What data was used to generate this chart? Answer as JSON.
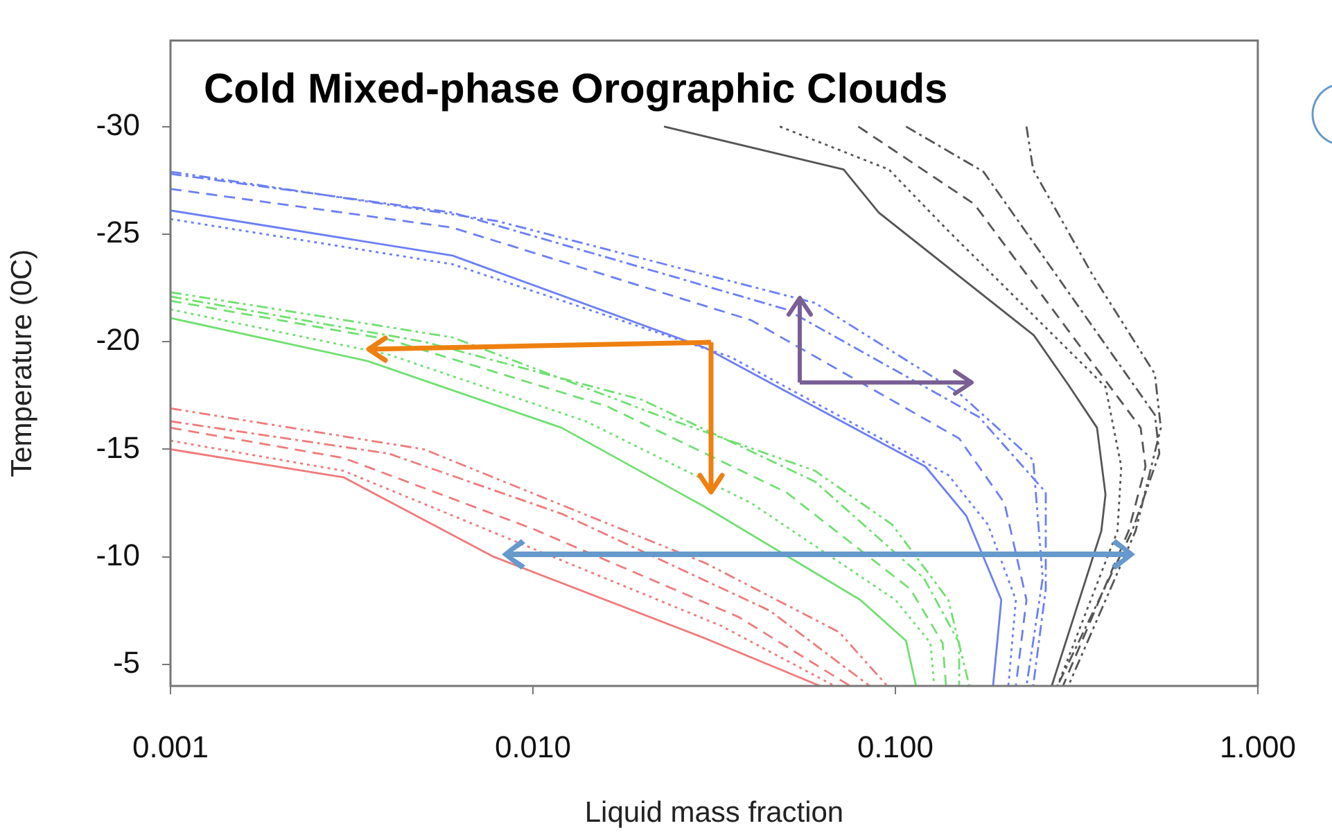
{
  "chart_data": {
    "type": "line",
    "title": "Cold Mixed-phase Orographic Clouds",
    "xlabel": "Liquid mass fraction",
    "ylabel": "Temperature (0C)",
    "log": "x",
    "xlim": [
      0.001,
      1
    ],
    "xticks": [
      0.001,
      {
        "value": 0.01,
        "label": "0.010"
      },
      {
        "value": 0.1,
        "label": "0.100"
      },
      {
        "value": 1,
        "label": "1.000"
      }
    ],
    "ylim": [
      -4,
      -34
    ],
    "yticks": [
      -30,
      -25,
      -20,
      -15,
      -10,
      -5
    ],
    "series": [
      {
        "color": "#6b7ff5",
        "line_style": "solid",
        "x": [
          0.001,
          0.006,
          0.03,
          0.121,
          0.157,
          0.196,
          0.186
        ],
        "values": [
          -26.1,
          -24,
          -19.7,
          -14.2,
          -11.9,
          -8,
          -4
        ]
      },
      {
        "color": "#6b7ff5",
        "line_style": "dotted",
        "x": [
          0.001,
          0.006,
          0.035,
          0.14,
          0.18,
          0.215,
          0.205
        ],
        "values": [
          -25.7,
          -23.6,
          -19.3,
          -13.8,
          -11.5,
          -8,
          -4
        ]
      },
      {
        "color": "#6b7ff5",
        "line_style": "dashed",
        "x": [
          0.001,
          0.006,
          0.04,
          0.15,
          0.2,
          0.23,
          0.215
        ],
        "values": [
          -27.1,
          -25.3,
          -21,
          -15.5,
          -12.5,
          -8,
          -4
        ]
      },
      {
        "color": "#6b7ff5",
        "line_style": "dashdot",
        "x": [
          0.001,
          0.006,
          0.05,
          0.17,
          0.26,
          0.26,
          0.24
        ],
        "values": [
          -27.8,
          -26,
          -21.5,
          -16.5,
          -13,
          -8.5,
          -4
        ]
      },
      {
        "color": "#6b7ff5",
        "line_style": "dashdotdot",
        "x": [
          0.001,
          0.008,
          0.06,
          0.15,
          0.24,
          0.255,
          0.23
        ],
        "values": [
          -27.9,
          -25.6,
          -21.8,
          -17.6,
          -14.5,
          -9,
          -4
        ]
      },
      {
        "color": "#6fe06f",
        "line_style": "solid",
        "x": [
          0.001,
          0.0035,
          0.012,
          0.03,
          0.08,
          0.107,
          0.114
        ],
        "values": [
          -21.1,
          -19.1,
          -16,
          -12.3,
          -8,
          -6.1,
          -4
        ]
      },
      {
        "color": "#6fe06f",
        "line_style": "dotted",
        "x": [
          0.001,
          0.004,
          0.014,
          0.04,
          0.1,
          0.125,
          0.128
        ],
        "values": [
          -21.5,
          -19.4,
          -16.3,
          -12.5,
          -8,
          -6,
          -4
        ]
      },
      {
        "color": "#6fe06f",
        "line_style": "dashed",
        "x": [
          0.001,
          0.004,
          0.016,
          0.05,
          0.11,
          0.135,
          0.138
        ],
        "values": [
          -21.9,
          -20.1,
          -17,
          -13,
          -8.5,
          -6,
          -4
        ]
      },
      {
        "color": "#6fe06f",
        "line_style": "dashdot",
        "x": [
          0.001,
          0.005,
          0.02,
          0.06,
          0.12,
          0.15,
          0.15
        ],
        "values": [
          -22.1,
          -20,
          -17.3,
          -13.5,
          -9,
          -6,
          -4
        ]
      },
      {
        "color": "#6fe06f",
        "line_style": "dashdotdot",
        "x": [
          0.001,
          0.006,
          0.022,
          0.06,
          0.098,
          0.14,
          0.16
        ],
        "values": [
          -22.3,
          -20.2,
          -16.6,
          -14,
          -11.5,
          -8,
          -4
        ]
      },
      {
        "color": "#f07a7a",
        "line_style": "solid",
        "x": [
          0.001,
          0.003,
          0.0078,
          0.03,
          0.062
        ],
        "values": [
          -15,
          -13.7,
          -10,
          -6.2,
          -4
        ]
      },
      {
        "color": "#f07a7a",
        "line_style": "dotted",
        "x": [
          0.001,
          0.003,
          0.009,
          0.033,
          0.068
        ],
        "values": [
          -15.4,
          -14,
          -10.7,
          -6.8,
          -4
        ]
      },
      {
        "color": "#f07a7a",
        "line_style": "dashed",
        "x": [
          0.001,
          0.003,
          0.01,
          0.037,
          0.075
        ],
        "values": [
          -16,
          -14.6,
          -11.3,
          -7.2,
          -4
        ]
      },
      {
        "color": "#f07a7a",
        "line_style": "dashdot",
        "x": [
          0.001,
          0.004,
          0.012,
          0.045,
          0.085
        ],
        "values": [
          -16.3,
          -14.8,
          -12,
          -7.5,
          -4
        ]
      },
      {
        "color": "#f07a7a",
        "line_style": "dashdotdot",
        "x": [
          0.001,
          0.005,
          0.03,
          0.07,
          0.095
        ],
        "values": [
          -16.9,
          -15,
          -9.7,
          -6.5,
          -4
        ]
      },
      {
        "color": "#555555",
        "line_style": "solid",
        "x": [
          0.023,
          0.072,
          0.09,
          0.241,
          0.3,
          0.36,
          0.38,
          0.37,
          0.27
        ],
        "values": [
          -30,
          -28,
          -26,
          -20.3,
          -18,
          -16,
          -12.9,
          -11.2,
          -4
        ]
      },
      {
        "color": "#555555",
        "line_style": "dotted",
        "x": [
          0.048,
          0.096,
          0.139,
          0.38,
          0.42,
          0.41,
          0.28
        ],
        "values": [
          -30,
          -28,
          -25.2,
          -17.9,
          -14.2,
          -11.2,
          -4
        ]
      },
      {
        "color": "#555555",
        "line_style": "dashed",
        "x": [
          0.079,
          0.165,
          0.475,
          0.49,
          0.44,
          0.29
        ],
        "values": [
          -30,
          -26.4,
          -16,
          -14.2,
          -11.2,
          -4
        ]
      },
      {
        "color": "#555555",
        "line_style": "dashdot",
        "x": [
          0.107,
          0.175,
          0.52,
          0.535,
          0.45,
          0.28
        ],
        "values": [
          -30,
          -27.9,
          -16.6,
          -14.8,
          -11.2,
          -4
        ]
      },
      {
        "color": "#555555",
        "line_style": "dashdotdot",
        "x": [
          0.23,
          0.24,
          0.35,
          0.52,
          0.54,
          0.46,
          0.3
        ],
        "values": [
          -30,
          -28,
          -23.1,
          -18.5,
          -16,
          -11.2,
          -4
        ]
      }
    ]
  }
}
